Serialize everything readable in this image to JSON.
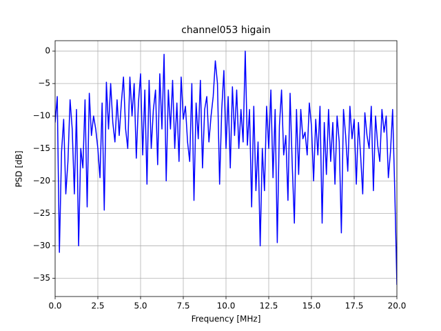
{
  "chart_data": {
    "type": "line",
    "title": "channel053 higain",
    "xlabel": "Frequency [MHz]",
    "ylabel": "PSD [dB]",
    "color": "#0000ff",
    "grid": true,
    "xlim": [
      0,
      20
    ],
    "ylim": [
      -37.8,
      1.6
    ],
    "xticks": [
      {
        "value": 0,
        "label": "0.0"
      },
      2.5,
      {
        "value": 5,
        "label": "5.0"
      },
      7.5,
      {
        "value": 10,
        "label": "10.0"
      },
      12.5,
      {
        "value": 15,
        "label": "15.0"
      },
      17.5,
      {
        "value": 20,
        "label": "20.0"
      }
    ],
    "yticks": [
      {
        "value": 0,
        "label": "0"
      },
      {
        "value": -5,
        "label": "−5"
      },
      {
        "value": -10,
        "label": "−10"
      },
      {
        "value": -15,
        "label": "−15"
      },
      {
        "value": -20,
        "label": "−20"
      },
      {
        "value": -25,
        "label": "−25"
      },
      {
        "value": -30,
        "label": "−30"
      },
      {
        "value": -35,
        "label": "−35"
      }
    ],
    "x": [
      0,
      0.125,
      0.25,
      0.375,
      0.5,
      0.625,
      0.75,
      0.875,
      1,
      1.125,
      1.25,
      1.375,
      1.5,
      1.625,
      1.75,
      1.875,
      2,
      2.125,
      2.25,
      2.375,
      2.5,
      2.625,
      2.75,
      2.875,
      3,
      3.125,
      3.25,
      3.375,
      3.5,
      3.625,
      3.75,
      3.875,
      4,
      4.125,
      4.25,
      4.375,
      4.5,
      4.625,
      4.75,
      4.875,
      5,
      5.125,
      5.25,
      5.375,
      5.5,
      5.625,
      5.75,
      5.875,
      6,
      6.125,
      6.25,
      6.375,
      6.5,
      6.625,
      6.75,
      6.875,
      7,
      7.125,
      7.25,
      7.375,
      7.5,
      7.625,
      7.75,
      7.875,
      8,
      8.125,
      8.25,
      8.375,
      8.5,
      8.625,
      8.75,
      8.875,
      9,
      9.125,
      9.25,
      9.375,
      9.5,
      9.625,
      9.75,
      9.875,
      10,
      10.125,
      10.25,
      10.375,
      10.5,
      10.625,
      10.75,
      10.875,
      11,
      11.125,
      11.25,
      11.375,
      11.5,
      11.625,
      11.75,
      11.875,
      12,
      12.125,
      12.25,
      12.375,
      12.5,
      12.625,
      12.75,
      12.875,
      13,
      13.125,
      13.25,
      13.375,
      13.5,
      13.625,
      13.75,
      13.875,
      14,
      14.125,
      14.25,
      14.375,
      14.5,
      14.625,
      14.75,
      14.875,
      15,
      15.125,
      15.25,
      15.375,
      15.5,
      15.625,
      15.75,
      15.875,
      16,
      16.125,
      16.25,
      16.375,
      16.5,
      16.625,
      16.75,
      16.875,
      17,
      17.125,
      17.25,
      17.375,
      17.5,
      17.625,
      17.75,
      17.875,
      18,
      18.125,
      18.25,
      18.375,
      18.5,
      18.625,
      18.75,
      18.875,
      19,
      19.125,
      19.25,
      19.375,
      19.5,
      19.625,
      19.75,
      19.875,
      20
    ],
    "values": [
      -11,
      -7,
      -31,
      -15.5,
      -10.5,
      -22,
      -17,
      -7.5,
      -12,
      -22,
      -9,
      -30,
      -15,
      -18,
      -7.5,
      -24,
      -6.5,
      -13,
      -10,
      -12,
      -15,
      -19.5,
      -8,
      -24.5,
      -4.8,
      -12,
      -5,
      -11,
      -14,
      -7.5,
      -13,
      -8,
      -4,
      -12,
      -15,
      -4,
      -10,
      -5,
      -16.5,
      -8,
      -3.5,
      -16,
      -6,
      -20.5,
      -4.5,
      -15,
      -9,
      -6,
      -17.5,
      -3.5,
      -12,
      -0.5,
      -20,
      -6,
      -12,
      -4.5,
      -15,
      -8,
      -17,
      -4,
      -10.5,
      -8.5,
      -14,
      -17,
      -5,
      -23,
      -8,
      -13.5,
      -4.5,
      -18,
      -9,
      -7,
      -14,
      -10,
      -7,
      -1.5,
      -5,
      -20.5,
      -9,
      -3,
      -15,
      -7,
      -18,
      -5.5,
      -13,
      -6,
      -15,
      -9,
      -14,
      0,
      -14.5,
      -9,
      -24,
      -8.5,
      -21.5,
      -14,
      -30,
      -15,
      -21.5,
      -8.5,
      -15,
      -6,
      -19.5,
      -9,
      -29.5,
      -11.5,
      -6,
      -16,
      -13,
      -23,
      -6.5,
      -17.5,
      -26.5,
      -9,
      -19,
      -9,
      -13.5,
      -12.5,
      -16,
      -8,
      -11.5,
      -20,
      -10.5,
      -16,
      -8.5,
      -26.5,
      -11,
      -19,
      -9,
      -17,
      -11,
      -20.5,
      -10,
      -14,
      -28,
      -9,
      -13,
      -18.5,
      -8.5,
      -13.5,
      -10.5,
      -20.5,
      -11,
      -16,
      -22,
      -9.5,
      -13,
      -15,
      -8.5,
      -21.5,
      -10,
      -14.5,
      -17,
      -9,
      -12.5,
      -10,
      -19.5,
      -15.5,
      -9,
      -21.5,
      -36
    ]
  }
}
